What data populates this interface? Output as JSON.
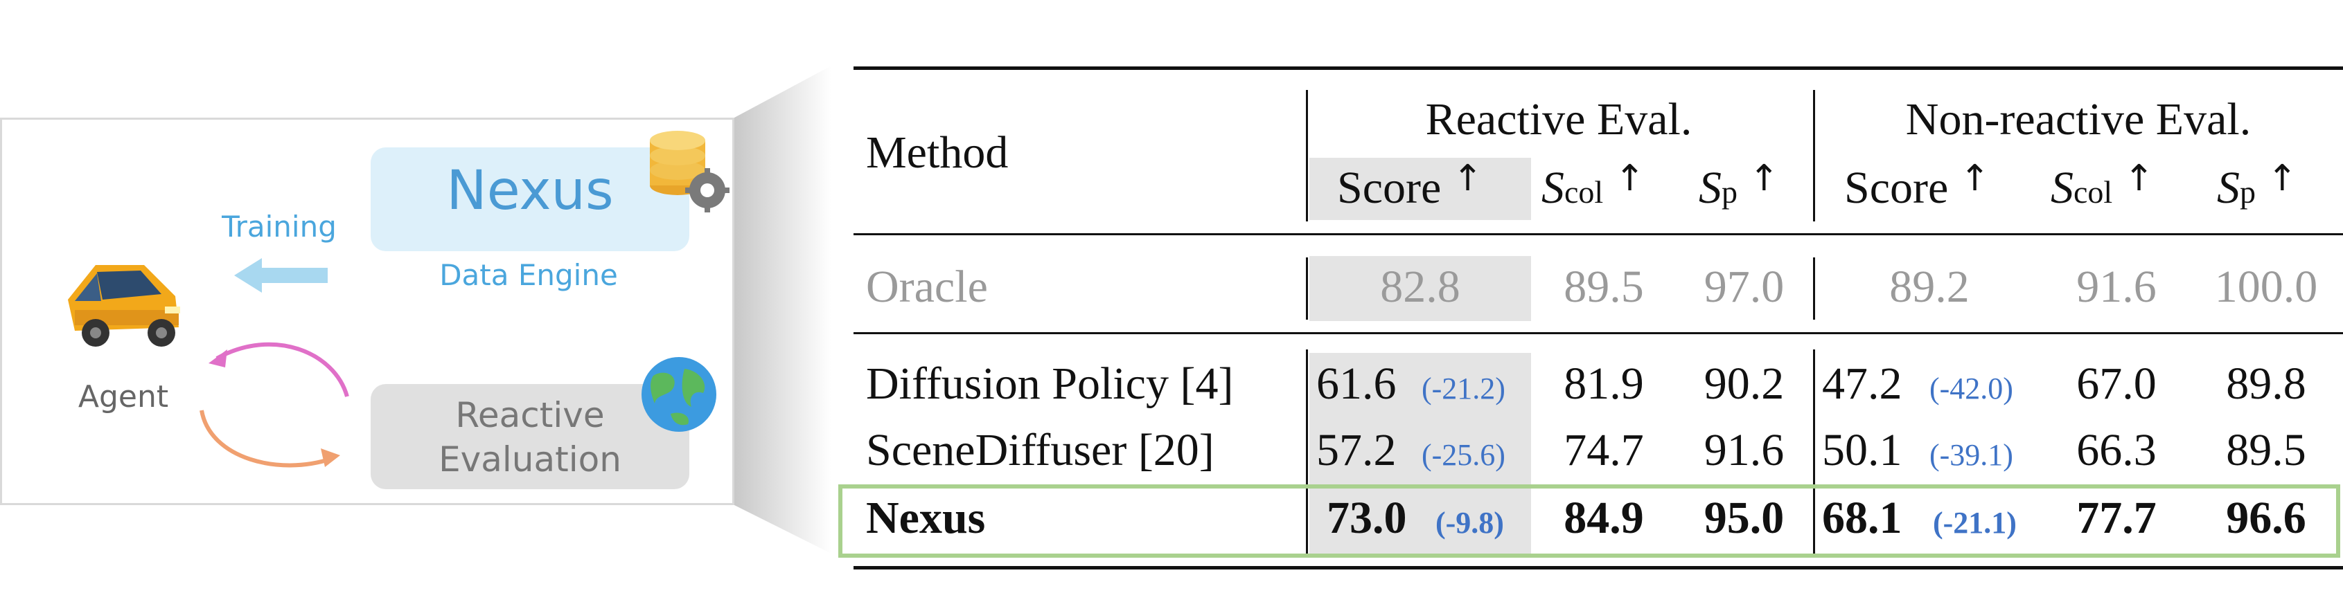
{
  "diagram": {
    "nexus_title": "Nexus",
    "data_engine": "Data Engine",
    "training": "Training",
    "agent": "Agent",
    "eval_line1": "Reactive",
    "eval_line2": "Evaluation",
    "icons": [
      "car-icon",
      "database-icon",
      "gear-icon",
      "globe-icon",
      "arrow-left-icon",
      "cycle-arrow-icon"
    ],
    "colors": {
      "nexus_blue": "#4a9ad4",
      "light_blue": "#ddf0fa",
      "gray_box": "#e0e0e0",
      "arrow_pink": "#e070c8",
      "arrow_orange": "#f0a070"
    }
  },
  "table": {
    "header": {
      "method": "Method",
      "reactive": "Reactive Eval.",
      "nonreactive": "Non-reactive Eval.",
      "score": "Score",
      "s": "S",
      "col": "col",
      "p": "p",
      "up": "↑"
    },
    "oracle": {
      "name": "Oracle",
      "r_score": "82.8",
      "r_col": "89.5",
      "r_p": "97.0",
      "n_score": "89.2",
      "n_col": "91.6",
      "n_p": "100.0"
    },
    "rows": [
      {
        "name": "Diffusion Policy ",
        "ref": "4",
        "r_score": "61.6",
        "r_delta": "(-21.2)",
        "r_col": "81.9",
        "r_p": "90.2",
        "n_score": "47.2",
        "n_delta": "(-42.0)",
        "n_col": "67.0",
        "n_p": "89.8"
      },
      {
        "name": "SceneDiffuser ",
        "ref": "20",
        "r_score": "57.2",
        "r_delta": "(-25.6)",
        "r_col": "74.7",
        "r_p": "91.6",
        "n_score": "50.1",
        "n_delta": "(-39.1)",
        "n_col": "66.3",
        "n_p": "89.5"
      }
    ],
    "nexus": {
      "name": "Nexus",
      "r_score": "73.0",
      "r_delta": "(-9.8)",
      "r_col": "84.9",
      "r_p": "95.0",
      "n_score": "68.1",
      "n_delta": "(-21.1)",
      "n_col": "77.7",
      "n_p": "96.6"
    },
    "colors": {
      "highlight_border": "#a9d18e",
      "shade": "#e4e4e4",
      "delta_blue": "#3f73c6",
      "oracle_gray": "#9a9a9a"
    }
  }
}
